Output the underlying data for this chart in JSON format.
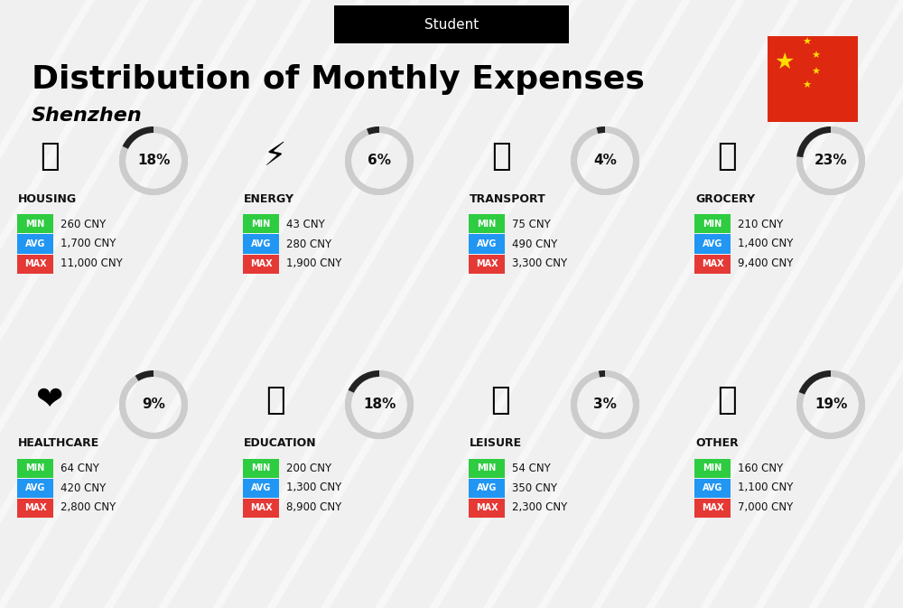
{
  "title": "Distribution of Monthly Expenses",
  "subtitle": "Student",
  "city": "Shenzhen",
  "bg_color": "#f0f0f0",
  "categories": [
    {
      "name": "HOUSING",
      "percent": 18,
      "min": "260 CNY",
      "avg": "1,700 CNY",
      "max": "11,000 CNY",
      "row": 0,
      "col": 0
    },
    {
      "name": "ENERGY",
      "percent": 6,
      "min": "43 CNY",
      "avg": "280 CNY",
      "max": "1,900 CNY",
      "row": 0,
      "col": 1
    },
    {
      "name": "TRANSPORT",
      "percent": 4,
      "min": "75 CNY",
      "avg": "490 CNY",
      "max": "3,300 CNY",
      "row": 0,
      "col": 2
    },
    {
      "name": "GROCERY",
      "percent": 23,
      "min": "210 CNY",
      "avg": "1,400 CNY",
      "max": "9,400 CNY",
      "row": 0,
      "col": 3
    },
    {
      "name": "HEALTHCARE",
      "percent": 9,
      "min": "64 CNY",
      "avg": "420 CNY",
      "max": "2,800 CNY",
      "row": 1,
      "col": 0
    },
    {
      "name": "EDUCATION",
      "percent": 18,
      "min": "200 CNY",
      "avg": "1,300 CNY",
      "max": "8,900 CNY",
      "row": 1,
      "col": 1
    },
    {
      "name": "LEISURE",
      "percent": 3,
      "min": "54 CNY",
      "avg": "350 CNY",
      "max": "2,300 CNY",
      "row": 1,
      "col": 2
    },
    {
      "name": "OTHER",
      "percent": 19,
      "min": "160 CNY",
      "avg": "1,100 CNY",
      "max": "7,000 CNY",
      "row": 1,
      "col": 3
    }
  ],
  "min_color": "#2ecc40",
  "avg_color": "#2196f3",
  "max_color": "#e53935",
  "label_text_color": "#ffffff",
  "ring_filled_color": "#222222",
  "ring_empty_color": "#cccccc",
  "category_name_color": "#111111",
  "value_text_color": "#111111",
  "percent_text_color": "#111111"
}
